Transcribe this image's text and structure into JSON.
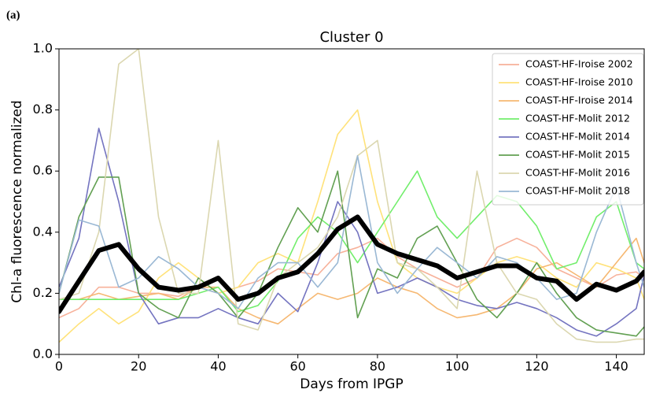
{
  "panel_label": "(a)",
  "chart_data": {
    "type": "line",
    "title": "Cluster 0",
    "x_label": "Days from IPGP",
    "y_label": "Chl-a fluorescence normalized",
    "x": [
      0,
      5,
      10,
      15,
      20,
      25,
      30,
      35,
      40,
      45,
      50,
      55,
      60,
      65,
      70,
      75,
      80,
      85,
      90,
      95,
      100,
      105,
      110,
      115,
      120,
      125,
      130,
      135,
      140,
      145,
      147
    ],
    "xlim": [
      0,
      147
    ],
    "ylim": [
      0,
      1
    ],
    "xticks": [
      0,
      20,
      40,
      60,
      80,
      100,
      120,
      140
    ],
    "yticks": [
      {
        "value": 0,
        "label": "0.0"
      },
      0.2,
      0.4,
      0.6,
      0.8,
      {
        "value": 1,
        "label": "1.0"
      }
    ],
    "legend": "upper right",
    "series": [
      {
        "name": "COAST-HF-Iroise 2002",
        "color": "#f7b19a",
        "values": [
          0.12,
          0.15,
          0.22,
          0.22,
          0.2,
          0.2,
          0.19,
          0.22,
          0.2,
          0.22,
          0.24,
          0.28,
          0.27,
          0.26,
          0.33,
          0.35,
          0.38,
          0.32,
          0.28,
          0.25,
          0.22,
          0.25,
          0.35,
          0.38,
          0.35,
          0.28,
          0.25,
          0.22,
          0.26,
          0.27,
          0.25
        ]
      },
      {
        "name": "COAST-HF-Iroise 2010",
        "color": "#ffe27a",
        "values": [
          0.04,
          0.1,
          0.15,
          0.1,
          0.14,
          0.25,
          0.3,
          0.25,
          0.2,
          0.22,
          0.3,
          0.33,
          0.3,
          0.5,
          0.72,
          0.8,
          0.5,
          0.3,
          0.25,
          0.22,
          0.2,
          0.25,
          0.3,
          0.32,
          0.3,
          0.25,
          0.22,
          0.3,
          0.28,
          0.25,
          0.18
        ]
      },
      {
        "name": "COAST-HF-Iroise 2014",
        "color": "#f6b872",
        "values": [
          0.18,
          0.18,
          0.2,
          0.18,
          0.19,
          0.2,
          0.18,
          0.22,
          0.22,
          0.15,
          0.12,
          0.1,
          0.15,
          0.2,
          0.18,
          0.2,
          0.25,
          0.22,
          0.2,
          0.15,
          0.12,
          0.13,
          0.15,
          0.2,
          0.28,
          0.3,
          0.26,
          0.22,
          0.3,
          0.38,
          0.3
        ]
      },
      {
        "name": "COAST-HF-Molit 2012",
        "color": "#72ee6c",
        "values": [
          0.18,
          0.18,
          0.18,
          0.18,
          0.18,
          0.18,
          0.18,
          0.2,
          0.22,
          0.14,
          0.16,
          0.24,
          0.38,
          0.45,
          0.4,
          0.3,
          0.4,
          0.5,
          0.6,
          0.45,
          0.38,
          0.45,
          0.52,
          0.5,
          0.42,
          0.28,
          0.3,
          0.45,
          0.5,
          0.3,
          0.28
        ]
      },
      {
        "name": "COAST-HF-Molit 2014",
        "color": "#7474c0",
        "values": [
          0.22,
          0.38,
          0.74,
          0.5,
          0.2,
          0.1,
          0.12,
          0.12,
          0.15,
          0.12,
          0.1,
          0.2,
          0.14,
          0.3,
          0.5,
          0.4,
          0.2,
          0.22,
          0.25,
          0.22,
          0.18,
          0.16,
          0.15,
          0.17,
          0.15,
          0.12,
          0.08,
          0.06,
          0.1,
          0.15,
          0.26
        ]
      },
      {
        "name": "COAST-HF-Molit 2015",
        "color": "#62a052",
        "values": [
          0.2,
          0.45,
          0.58,
          0.58,
          0.2,
          0.15,
          0.12,
          0.25,
          0.2,
          0.12,
          0.2,
          0.35,
          0.48,
          0.4,
          0.6,
          0.12,
          0.28,
          0.25,
          0.38,
          0.42,
          0.3,
          0.18,
          0.12,
          0.2,
          0.3,
          0.2,
          0.12,
          0.08,
          0.07,
          0.06,
          0.09
        ]
      },
      {
        "name": "COAST-HF-Molit 2016",
        "color": "#dbd7b0",
        "values": [
          0.18,
          0.2,
          0.4,
          0.95,
          1.0,
          0.45,
          0.2,
          0.2,
          0.7,
          0.1,
          0.08,
          0.25,
          0.3,
          0.35,
          0.45,
          0.65,
          0.7,
          0.3,
          0.28,
          0.22,
          0.15,
          0.6,
          0.3,
          0.2,
          0.18,
          0.1,
          0.05,
          0.04,
          0.04,
          0.05,
          0.05
        ]
      },
      {
        "name": "COAST-HF-Molit 2018",
        "color": "#9ab8d4",
        "values": [
          0.2,
          0.44,
          0.42,
          0.22,
          0.25,
          0.32,
          0.28,
          0.22,
          0.2,
          0.15,
          0.25,
          0.3,
          0.3,
          0.22,
          0.3,
          0.65,
          0.3,
          0.2,
          0.28,
          0.35,
          0.3,
          0.25,
          0.32,
          0.3,
          0.25,
          0.18,
          0.2,
          0.4,
          0.55,
          0.3,
          0.22
        ]
      },
      {
        "color": "#000000",
        "values": [
          0.14,
          0.24,
          0.34,
          0.36,
          0.28,
          0.22,
          0.21,
          0.22,
          0.25,
          0.18,
          0.2,
          0.25,
          0.27,
          0.33,
          0.41,
          0.45,
          0.36,
          0.33,
          0.31,
          0.29,
          0.25,
          0.27,
          0.29,
          0.29,
          0.25,
          0.24,
          0.18,
          0.23,
          0.21,
          0.24,
          0.27
        ]
      }
    ]
  }
}
